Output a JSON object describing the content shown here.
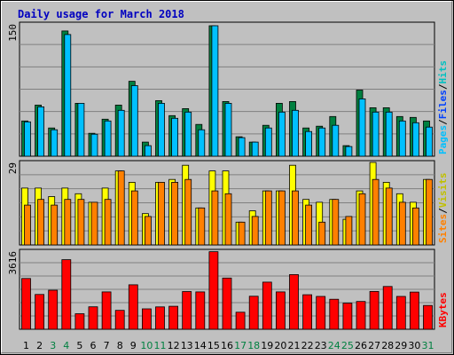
{
  "chart_data": {
    "type": "bar",
    "title": "Daily usage for March 2018",
    "categories": [
      "1",
      "2",
      "3",
      "4",
      "5",
      "6",
      "7",
      "8",
      "9",
      "10",
      "11",
      "12",
      "13",
      "14",
      "15",
      "16",
      "17",
      "18",
      "19",
      "20",
      "21",
      "22",
      "23",
      "24",
      "25",
      "26",
      "27",
      "28",
      "29",
      "30",
      "31"
    ],
    "weekend_days": [
      "3",
      "4",
      "10",
      "11",
      "17",
      "18",
      "24",
      "25",
      "31"
    ],
    "panels": [
      {
        "id": "hits-files-pages",
        "max_label": "150",
        "ylim": [
          0,
          150
        ],
        "legend": [
          "Pages",
          "/",
          "Files",
          "/",
          "Hits"
        ],
        "series": [
          {
            "name": "Hits",
            "color": "#008040",
            "values": [
              40,
              58,
              32,
              142,
              60,
              26,
              42,
              58,
              85,
              16,
              63,
              46,
              54,
              36,
              148,
              62,
              22,
              16,
              35,
              60,
              62,
              32,
              34,
              45,
              12,
              75,
              55,
              55,
              45,
              44,
              40
            ]
          },
          {
            "name": "Files",
            "color": "#00c0ff",
            "values": [
              39,
              56,
              30,
              138,
              60,
              25,
              40,
              52,
              80,
              12,
              60,
              43,
              50,
              30,
              148,
              60,
              21,
              16,
              32,
              50,
              52,
              28,
              32,
              35,
              11,
              65,
              50,
              50,
              40,
              38,
              33
            ]
          }
        ]
      },
      {
        "id": "visits-sites",
        "max_label": "29",
        "ylim": [
          0,
          29
        ],
        "legend": [
          "Sites",
          "/",
          "Visits"
        ],
        "series": [
          {
            "name": "Visits",
            "color": "#ffff00",
            "values": [
              20,
              20,
              17,
              20,
              18,
              15,
              20,
              26,
              22,
              11,
              22,
              23,
              28,
              13,
              26,
              26,
              8,
              12,
              19,
              19,
              28,
              16,
              15,
              16,
              9,
              19,
              29,
              22,
              18,
              15,
              23
            ]
          },
          {
            "name": "Sites",
            "color": "#ff8000",
            "values": [
              14,
              16,
              14,
              16,
              16,
              15,
              16,
              26,
              19,
              10,
              22,
              22,
              23,
              13,
              19,
              18,
              8,
              10,
              19,
              19,
              19,
              14,
              8,
              16,
              10,
              18,
              23,
              20,
              15,
              13,
              23
            ]
          }
        ]
      },
      {
        "id": "kbytes",
        "max_label": "3616",
        "ylim": [
          0,
          3616
        ],
        "legend": [
          "KBytes"
        ],
        "series": [
          {
            "name": "KBytes",
            "color": "#ff0000",
            "values": [
              2350,
              1610,
              1810,
              3220,
              720,
              1040,
              1730,
              875,
              2060,
              945,
              1035,
              1065,
              1745,
              1730,
              3590,
              2370,
              790,
              1530,
              2180,
              1730,
              2530,
              1600,
              1520,
              1390,
              1210,
              1285,
              1750,
              1980,
              1520,
              1720,
              1100
            ]
          }
        ]
      }
    ],
    "colors": {
      "title": "#0000c0",
      "weekend_label": "#008040",
      "weekday_label": "#000000",
      "pages": "#00c0ff",
      "files": "#0040ff",
      "hits": "#00c0c0",
      "sites": "#ff8000",
      "visits": "#c0c000",
      "kbytes": "#ff0000"
    }
  }
}
